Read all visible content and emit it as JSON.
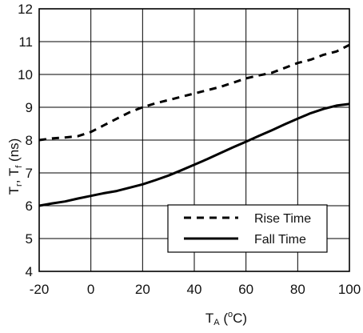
{
  "chart_data": {
    "type": "line",
    "xlabel": {
      "main": "T",
      "sub": "A",
      "open": " (",
      "sup": "o",
      "close": "C)"
    },
    "ylabel": {
      "a": "T",
      "a_sub": "r",
      "sep": ", T",
      "b_sub": "f",
      "unit": " (ns)"
    },
    "xlim": [
      -20,
      100
    ],
    "ylim": [
      4,
      12
    ],
    "xticks": [
      -20,
      0,
      20,
      40,
      60,
      80,
      100
    ],
    "yticks": [
      4,
      5,
      6,
      7,
      8,
      9,
      10,
      11,
      12
    ],
    "grid": true,
    "legend_position": "bottom-right",
    "series": [
      {
        "name": "Rise Time",
        "style": "dashed",
        "color": "#000000",
        "x": [
          -20,
          -15,
          -10,
          -5,
          0,
          5,
          10,
          15,
          20,
          25,
          30,
          35,
          40,
          45,
          50,
          55,
          60,
          65,
          70,
          75,
          80,
          85,
          90,
          95,
          100
        ],
        "y": [
          8.0,
          8.05,
          8.08,
          8.12,
          8.25,
          8.45,
          8.65,
          8.85,
          9.0,
          9.12,
          9.22,
          9.32,
          9.42,
          9.52,
          9.62,
          9.75,
          9.88,
          9.97,
          10.05,
          10.2,
          10.35,
          10.45,
          10.6,
          10.7,
          10.9
        ]
      },
      {
        "name": "Fall Time",
        "style": "solid",
        "color": "#000000",
        "x": [
          -20,
          -15,
          -10,
          -5,
          0,
          5,
          10,
          15,
          20,
          25,
          30,
          35,
          40,
          45,
          50,
          55,
          60,
          65,
          70,
          75,
          80,
          85,
          90,
          95,
          100
        ],
        "y": [
          6.0,
          6.07,
          6.13,
          6.22,
          6.3,
          6.38,
          6.45,
          6.55,
          6.65,
          6.78,
          6.92,
          7.08,
          7.25,
          7.42,
          7.6,
          7.78,
          7.95,
          8.13,
          8.3,
          8.48,
          8.65,
          8.82,
          8.95,
          9.05,
          9.1
        ]
      }
    ]
  }
}
